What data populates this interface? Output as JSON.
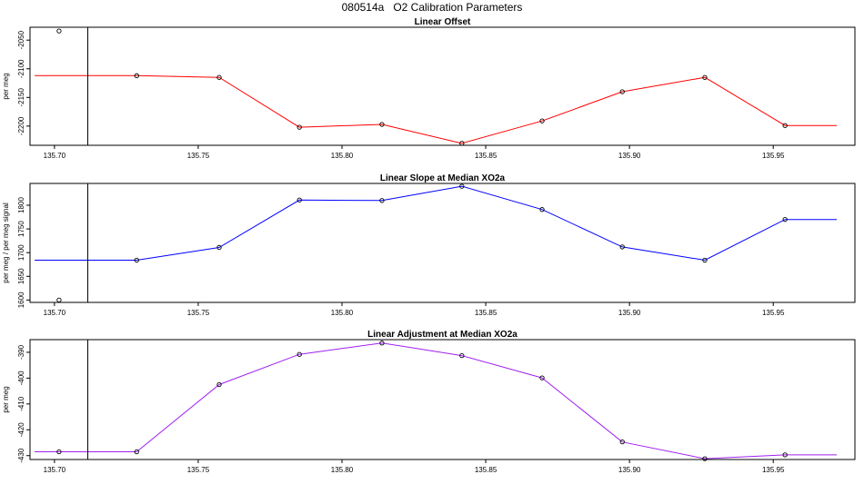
{
  "figure": {
    "title": "080514a   O2 Calibration Parameters"
  },
  "chart_data": [
    {
      "type": "line",
      "title": "Linear Offset",
      "ylabel": "per meg",
      "xlim": [
        135.6915,
        135.9784
      ],
      "ylim": [
        -2233.5,
        -2027.5
      ],
      "xticks": [
        135.7,
        135.75,
        135.8,
        135.85,
        135.9,
        135.95
      ],
      "xtick_labels": [
        "135.70",
        "135.75",
        "135.80",
        "135.85",
        "135.90",
        "135.95"
      ],
      "yticks": [
        -2050,
        -2100,
        -2150,
        -2200
      ],
      "ytick_labels": [
        "-2050",
        "-2100",
        "-2150",
        "-2200"
      ],
      "vline_x": 135.7116,
      "grid": false,
      "series": [
        {
          "color": "#ff0000",
          "points": [
            [
              135.7016,
              -2034
            ],
            [
              135.7286,
              -2112
            ],
            [
              135.7573,
              -2115
            ],
            [
              135.7852,
              -2202
            ],
            [
              135.8139,
              -2197
            ],
            [
              135.8417,
              -2230
            ],
            [
              135.8696,
              -2191
            ],
            [
              135.8975,
              -2140
            ],
            [
              135.9262,
              -2115
            ],
            [
              135.9541,
              -2199
            ]
          ],
          "line": [
            [
              135.6931,
              -2112
            ],
            [
              135.7286,
              -2112
            ],
            [
              135.7573,
              -2115
            ],
            [
              135.7852,
              -2202
            ],
            [
              135.8139,
              -2197
            ],
            [
              135.8417,
              -2230
            ],
            [
              135.8696,
              -2191
            ],
            [
              135.8975,
              -2140
            ],
            [
              135.9262,
              -2115
            ],
            [
              135.9541,
              -2199
            ],
            [
              135.9721,
              -2199
            ]
          ]
        }
      ]
    },
    {
      "type": "line",
      "title": "Linear Slope at Median XO2a",
      "ylabel": "per meg / per meg signal",
      "xlim": [
        135.6915,
        135.9784
      ],
      "ylim": [
        1595,
        1846
      ],
      "xticks": [
        135.7,
        135.75,
        135.8,
        135.85,
        135.9,
        135.95
      ],
      "xtick_labels": [
        "135.70",
        "135.75",
        "135.80",
        "135.85",
        "135.90",
        "135.95"
      ],
      "yticks": [
        1600,
        1650,
        1700,
        1750,
        1800
      ],
      "ytick_labels": [
        "1600",
        "1650",
        "1700",
        "1750",
        "1800"
      ],
      "vline_x": 135.7116,
      "grid": false,
      "series": [
        {
          "color": "#0000ff",
          "points": [
            [
              135.7016,
              1600
            ],
            [
              135.7286,
              1684
            ],
            [
              135.7573,
              1711
            ],
            [
              135.7852,
              1811
            ],
            [
              135.8139,
              1810
            ],
            [
              135.8417,
              1840
            ],
            [
              135.8696,
              1791
            ],
            [
              135.8975,
              1712
            ],
            [
              135.9262,
              1684
            ],
            [
              135.9541,
              1770
            ]
          ],
          "line": [
            [
              135.6931,
              1684
            ],
            [
              135.7286,
              1684
            ],
            [
              135.7573,
              1711
            ],
            [
              135.7852,
              1811
            ],
            [
              135.8139,
              1810
            ],
            [
              135.8417,
              1840
            ],
            [
              135.8696,
              1791
            ],
            [
              135.8975,
              1712
            ],
            [
              135.9262,
              1684
            ],
            [
              135.9541,
              1770
            ],
            [
              135.9721,
              1770
            ]
          ]
        }
      ]
    },
    {
      "type": "line",
      "title": "Linear Adjustment at Median XO2a",
      "ylabel": "per meg",
      "xlim": [
        135.6915,
        135.9784
      ],
      "ylim": [
        -431.5,
        -385.1
      ],
      "xticks": [
        135.7,
        135.75,
        135.8,
        135.85,
        135.9,
        135.95
      ],
      "xtick_labels": [
        "135.70",
        "135.75",
        "135.80",
        "135.85",
        "135.90",
        "135.95"
      ],
      "yticks": [
        -390,
        -400,
        -410,
        -420,
        -430
      ],
      "ytick_labels": [
        "-390",
        "-400",
        "-410",
        "-420",
        "-430"
      ],
      "vline_x": 135.7116,
      "grid": false,
      "series": [
        {
          "color": "#a020f0",
          "points": [
            [
              135.7016,
              -428.5
            ],
            [
              135.7286,
              -428.5
            ],
            [
              135.7573,
              -402.5
            ],
            [
              135.7852,
              -390.8
            ],
            [
              135.8139,
              -386.4
            ],
            [
              135.8417,
              -391.3
            ],
            [
              135.8696,
              -399.9
            ],
            [
              135.8975,
              -424.7
            ],
            [
              135.9262,
              -431.2
            ],
            [
              135.9541,
              -429.7
            ]
          ],
          "line": [
            [
              135.6931,
              -428.5
            ],
            [
              135.7286,
              -428.5
            ],
            [
              135.7573,
              -402.5
            ],
            [
              135.7852,
              -390.8
            ],
            [
              135.8139,
              -386.4
            ],
            [
              135.8417,
              -391.3
            ],
            [
              135.8696,
              -399.9
            ],
            [
              135.8975,
              -424.7
            ],
            [
              135.9262,
              -431.2
            ],
            [
              135.9541,
              -429.7
            ],
            [
              135.9721,
              -429.7
            ]
          ]
        }
      ]
    }
  ]
}
